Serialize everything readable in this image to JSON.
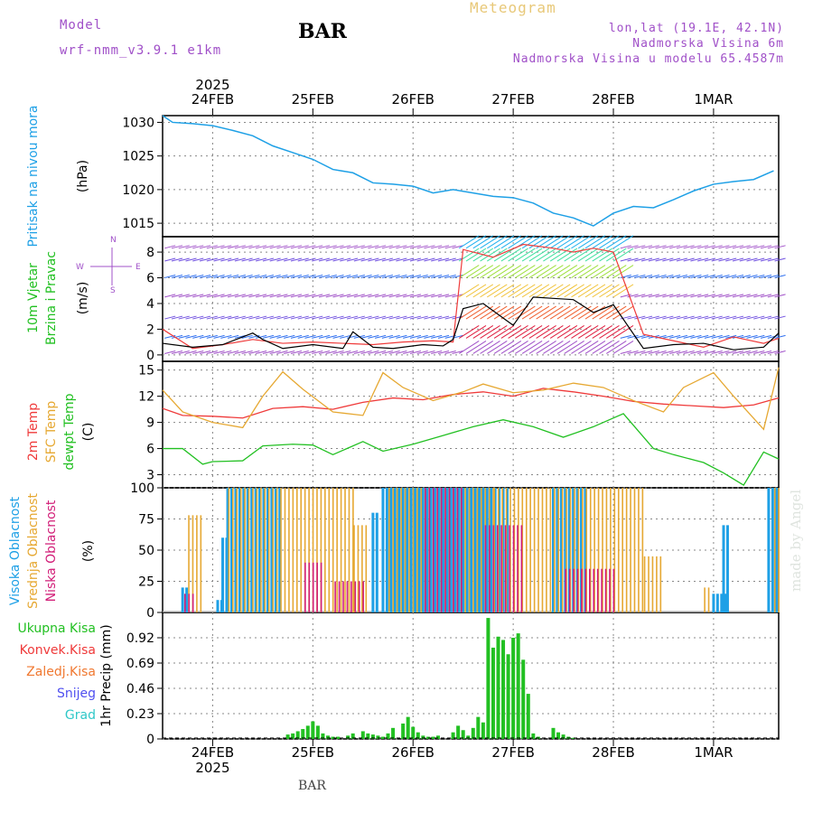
{
  "header": {
    "model_label": "Model",
    "model_name": "wrf-nmm_v3.9.1  e1km",
    "station": "BAR",
    "product": "Meteogram",
    "lonlat": "lon,lat (19.1E, 42.1N)",
    "elevation": "Nadmorska Visina 6m",
    "model_elevation": "Nadmorska Visina u modelu 65.4587m"
  },
  "footer_station": "BAR",
  "watermark": "made by Angel",
  "colors": {
    "pressure": "#1ea0e6",
    "temp2m": "#ef3a3a",
    "sfc": "#e6a832",
    "dew": "#22c022",
    "high_cloud": "#1ea0e6",
    "mid_cloud": "#e6a832",
    "low_cloud": "#d21e78",
    "precip": "#22c022",
    "header_purple": "#a050c8",
    "header_orange": "#e8c878"
  },
  "chart_data": [
    {
      "type": "line",
      "panel": "pressure",
      "ylabel_lines": [
        "Pritisak na nivou mora",
        "(hPa)"
      ],
      "ylim": [
        1013,
        1031
      ],
      "yticks": [
        1015,
        1020,
        1025,
        1030
      ],
      "x_range_days": [
        0,
        6.15
      ],
      "top_axis": {
        "year": "2025",
        "labels": [
          "24FEB",
          "25FEB",
          "26FEB",
          "27FEB",
          "28FEB",
          "1MAR"
        ]
      },
      "series": [
        {
          "name": "Pritisak na nivou mora",
          "x": [
            0,
            0.1,
            0.3,
            0.5,
            0.7,
            0.9,
            1.1,
            1.3,
            1.5,
            1.7,
            1.9,
            2.1,
            2.3,
            2.5,
            2.7,
            2.9,
            3.1,
            3.3,
            3.5,
            3.7,
            3.9,
            4.1,
            4.3,
            4.5,
            4.7,
            4.9,
            5.1,
            5.3,
            5.5,
            5.7,
            5.9,
            6.1
          ],
          "values": [
            1031,
            1030,
            1029.8,
            1029.5,
            1028.8,
            1028,
            1026.5,
            1025.5,
            1024.5,
            1023,
            1022.5,
            1021,
            1020.8,
            1020.5,
            1019.5,
            1020,
            1019.5,
            1019,
            1018.8,
            1018,
            1016.5,
            1015.8,
            1014.6,
            1016.5,
            1017.5,
            1017.3,
            1018.5,
            1019.8,
            1020.8,
            1021.2,
            1021.5,
            1022.8
          ]
        }
      ]
    },
    {
      "type": "line",
      "panel": "wind",
      "ylabel_lines": [
        "10m Vjetar",
        "Brzina i Pravac",
        "(m/s)"
      ],
      "direction_legend": [
        "N",
        "S",
        "W",
        "E"
      ],
      "ylim": [
        -0.5,
        9.2
      ],
      "yticks": [
        0,
        2,
        4,
        6,
        8
      ],
      "series": [
        {
          "name": "Brzina",
          "x": [
            0,
            0.3,
            0.6,
            0.9,
            1.0,
            1.2,
            1.5,
            1.8,
            1.9,
            2.1,
            2.3,
            2.6,
            2.8,
            2.9,
            3.0,
            3.2,
            3.5,
            3.7,
            3.9,
            4.1,
            4.3,
            4.5,
            4.8,
            5.1,
            5.4,
            5.7,
            6.0,
            6.15
          ],
          "values": [
            0.9,
            0.6,
            0.8,
            1.7,
            1.2,
            0.5,
            0.8,
            0.5,
            1.8,
            0.6,
            0.5,
            0.8,
            0.7,
            1.2,
            3.6,
            4.0,
            2.3,
            4.5,
            4.4,
            4.3,
            3.3,
            3.9,
            0.5,
            0.8,
            0.9,
            0.4,
            0.6,
            1.7
          ]
        },
        {
          "name": "Udari",
          "x": [
            0,
            0.3,
            0.6,
            0.9,
            1.2,
            1.5,
            1.8,
            2.1,
            2.4,
            2.7,
            2.9,
            3.0,
            3.3,
            3.6,
            3.9,
            4.1,
            4.3,
            4.5,
            4.8,
            5.1,
            5.4,
            5.7,
            6.0,
            6.15
          ],
          "values": [
            2.0,
            0.5,
            0.8,
            1.2,
            0.9,
            1.0,
            0.9,
            0.8,
            1.0,
            1.1,
            1.0,
            8.2,
            7.6,
            8.6,
            8.3,
            8.0,
            8.3,
            8.0,
            1.6,
            1.1,
            0.6,
            1.4,
            0.9,
            1.3
          ]
        }
      ]
    },
    {
      "type": "line",
      "panel": "temperature",
      "ylabel_lines": [
        "2m Temp",
        "SFC Temp",
        "dewpt Temp",
        "(C)"
      ],
      "ylim": [
        1.5,
        16
      ],
      "yticks": [
        3,
        6,
        9,
        12,
        15
      ],
      "series": [
        {
          "name": "2m Temp",
          "x": [
            0,
            0.2,
            0.5,
            0.8,
            1.1,
            1.4,
            1.7,
            2.0,
            2.3,
            2.6,
            2.9,
            3.2,
            3.5,
            3.8,
            4.1,
            4.4,
            4.7,
            5.0,
            5.3,
            5.6,
            5.9,
            6.15
          ],
          "values": [
            10.6,
            9.8,
            9.7,
            9.5,
            10.6,
            10.8,
            10.5,
            11.3,
            11.8,
            11.6,
            12.2,
            12.5,
            12.0,
            12.9,
            12.5,
            12.0,
            11.4,
            11.1,
            10.9,
            10.7,
            11.0,
            11.8
          ]
        },
        {
          "name": "SFC Temp",
          "x": [
            0,
            0.2,
            0.5,
            0.8,
            1.0,
            1.2,
            1.4,
            1.7,
            2.0,
            2.2,
            2.4,
            2.7,
            3.0,
            3.2,
            3.5,
            3.8,
            4.1,
            4.4,
            4.7,
            5.0,
            5.2,
            5.5,
            5.7,
            6.0,
            6.15
          ],
          "values": [
            12.7,
            10.2,
            9.0,
            8.4,
            12.0,
            14.8,
            12.8,
            10.2,
            9.8,
            14.7,
            13.0,
            11.5,
            12.5,
            13.4,
            12.4,
            12.7,
            13.5,
            13.0,
            11.5,
            10.2,
            13.0,
            14.7,
            12.0,
            8.2,
            15.3
          ]
        },
        {
          "name": "dewpt Temp",
          "x": [
            0,
            0.2,
            0.4,
            0.5,
            0.8,
            1.0,
            1.3,
            1.5,
            1.7,
            2.0,
            2.2,
            2.5,
            2.8,
            3.1,
            3.4,
            3.7,
            4.0,
            4.3,
            4.6,
            4.9,
            5.1,
            5.4,
            5.6,
            5.8,
            6.0,
            6.15
          ],
          "values": [
            6.0,
            6.0,
            4.2,
            4.5,
            4.6,
            6.3,
            6.5,
            6.4,
            5.3,
            6.8,
            5.7,
            6.5,
            7.5,
            8.5,
            9.3,
            8.5,
            7.3,
            8.5,
            10.0,
            6.0,
            5.3,
            4.4,
            3.2,
            1.8,
            5.6,
            4.8
          ]
        }
      ]
    },
    {
      "type": "bar",
      "panel": "cloud",
      "ylabel_lines": [
        "Visoka Oblacnost",
        "Srednja Oblacnost",
        "Niska Oblacnost",
        "(%)"
      ],
      "ylim": [
        0,
        100
      ],
      "yticks": [
        0,
        25,
        50,
        75,
        100
      ],
      "series": [
        {
          "name": "Visoka Oblacnost",
          "segments": [
            [
              0.2,
              0.25,
              20
            ],
            [
              0.55,
              0.6,
              10
            ],
            [
              0.6,
              0.65,
              60
            ],
            [
              0.65,
              1.2,
              100
            ],
            [
              2.1,
              2.15,
              80
            ],
            [
              2.2,
              2.4,
              100
            ],
            [
              2.4,
              3.45,
              100
            ],
            [
              3.9,
              4.25,
              100
            ],
            [
              5.5,
              5.65,
              15
            ],
            [
              5.6,
              5.65,
              70
            ],
            [
              6.05,
              6.15,
              100
            ]
          ]
        },
        {
          "name": "Srednja Oblacnost",
          "segments": [
            [
              0.25,
              0.4,
              78
            ],
            [
              0.65,
              1.9,
              100
            ],
            [
              1.9,
              2.05,
              70
            ],
            [
              2.25,
              3.3,
              100
            ],
            [
              3.3,
              4.8,
              100
            ],
            [
              4.8,
              5.0,
              45
            ],
            [
              5.4,
              5.45,
              20
            ],
            [
              6.1,
              6.15,
              100
            ]
          ]
        },
        {
          "name": "Niska Oblacnost",
          "segments": [
            [
              0.2,
              0.3,
              15
            ],
            [
              1.4,
              1.6,
              40
            ],
            [
              1.7,
              2.0,
              25
            ],
            [
              2.6,
              3.0,
              100
            ],
            [
              3.2,
              3.6,
              70
            ],
            [
              4.0,
              4.5,
              35
            ]
          ]
        }
      ]
    },
    {
      "type": "bar",
      "panel": "precip",
      "ylabel_lines": [
        "1hr Precip (mm)"
      ],
      "legend": [
        "Ukupna Kisa",
        "Konvek.Kisa",
        "Zaledj.Kisa",
        "Snijeg",
        "Grad"
      ],
      "ylim": [
        0,
        1.15
      ],
      "yticks": [
        0,
        0.23,
        0.46,
        0.69,
        0.92
      ],
      "ytick_labels": [
        "0",
        "0.23",
        "0.46",
        "0.69",
        "0.92"
      ],
      "bottom_axis": {
        "year": "2025",
        "labels": [
          "24FEB",
          "25FEB",
          "26FEB",
          "27FEB",
          "28FEB",
          "1MAR"
        ]
      },
      "series": [
        {
          "name": "Ukupna Kisa",
          "x": [
            1.25,
            1.3,
            1.35,
            1.4,
            1.45,
            1.5,
            1.55,
            1.6,
            1.65,
            1.7,
            1.75,
            1.85,
            1.9,
            2.0,
            2.05,
            2.1,
            2.15,
            2.2,
            2.25,
            2.3,
            2.4,
            2.45,
            2.5,
            2.55,
            2.6,
            2.65,
            2.7,
            2.75,
            2.9,
            2.95,
            3.0,
            3.05,
            3.1,
            3.15,
            3.2,
            3.25,
            3.3,
            3.35,
            3.4,
            3.45,
            3.5,
            3.55,
            3.6,
            3.65,
            3.7,
            3.75,
            3.9,
            3.95,
            4.0,
            4.05,
            4.1
          ],
          "values": [
            0.04,
            0.05,
            0.07,
            0.09,
            0.12,
            0.16,
            0.12,
            0.05,
            0.03,
            0.02,
            0.02,
            0.03,
            0.05,
            0.07,
            0.05,
            0.04,
            0.03,
            0.02,
            0.05,
            0.1,
            0.14,
            0.2,
            0.11,
            0.06,
            0.03,
            0.02,
            0.02,
            0.03,
            0.06,
            0.12,
            0.08,
            0.03,
            0.1,
            0.2,
            0.15,
            1.1,
            0.83,
            0.93,
            0.9,
            0.77,
            0.92,
            0.96,
            0.72,
            0.41,
            0.05,
            0.02,
            0.1,
            0.06,
            0.04,
            0.02,
            0.01
          ]
        }
      ]
    }
  ]
}
